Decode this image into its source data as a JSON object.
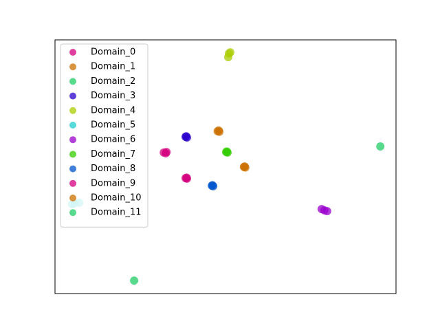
{
  "chart_data": {
    "type": "scatter",
    "xlim": [
      0,
      100
    ],
    "ylim": [
      0,
      100
    ],
    "legend": "upper left",
    "series": [
      {
        "name": "Domain_0",
        "color": "#d4007f",
        "x": [
          31.9,
          32.5,
          32.7
        ],
        "y": [
          55.6,
          55.3,
          55.8
        ]
      },
      {
        "name": "Domain_1",
        "color": "#cc7000",
        "x": [
          47.7,
          48.2,
          48.0
        ],
        "y": [
          64.0,
          63.8,
          64.3
        ]
      },
      {
        "name": "Domain_2",
        "color": "#22cc66",
        "x": [
          95.4
        ],
        "y": [
          58.0
        ]
      },
      {
        "name": "Domain_3",
        "color": "#2a00cc",
        "x": [
          38.3,
          38.7,
          38.5
        ],
        "y": [
          61.8,
          61.5,
          62.0
        ]
      },
      {
        "name": "Domain_4",
        "color": "#aacc00",
        "x": [
          51.0,
          50.8,
          51.4
        ],
        "y": [
          94.6,
          93.2,
          95.1
        ]
      },
      {
        "name": "Domain_5",
        "color": "#22cccc",
        "x": [
          5.6,
          7.1,
          5.0
        ],
        "y": [
          35.5,
          35.8,
          35.2
        ]
      },
      {
        "name": "Domain_6",
        "color": "#9900cc",
        "x": [
          79.0,
          78.2,
          79.8
        ],
        "y": [
          32.8,
          33.3,
          32.5
        ]
      },
      {
        "name": "Domain_7",
        "color": "#33cc00",
        "x": [
          50.2,
          50.6,
          50.4
        ],
        "y": [
          55.8,
          55.6,
          56.0
        ]
      },
      {
        "name": "Domain_8",
        "color": "#0055cc",
        "x": [
          46.0,
          46.4,
          46.2
        ],
        "y": [
          42.5,
          42.3,
          42.7
        ]
      },
      {
        "name": "Domain_9",
        "color": "#d4007f",
        "x": [
          38.3,
          38.7,
          38.6
        ],
        "y": [
          45.5,
          45.3,
          45.7
        ]
      },
      {
        "name": "Domain_10",
        "color": "#cc7000",
        "x": [
          55.4,
          55.8,
          55.6
        ],
        "y": [
          49.9,
          49.7,
          50.1
        ]
      },
      {
        "name": "Domain_11",
        "color": "#22cc66",
        "x": [
          23.2
        ],
        "y": [
          5.1
        ]
      }
    ]
  }
}
